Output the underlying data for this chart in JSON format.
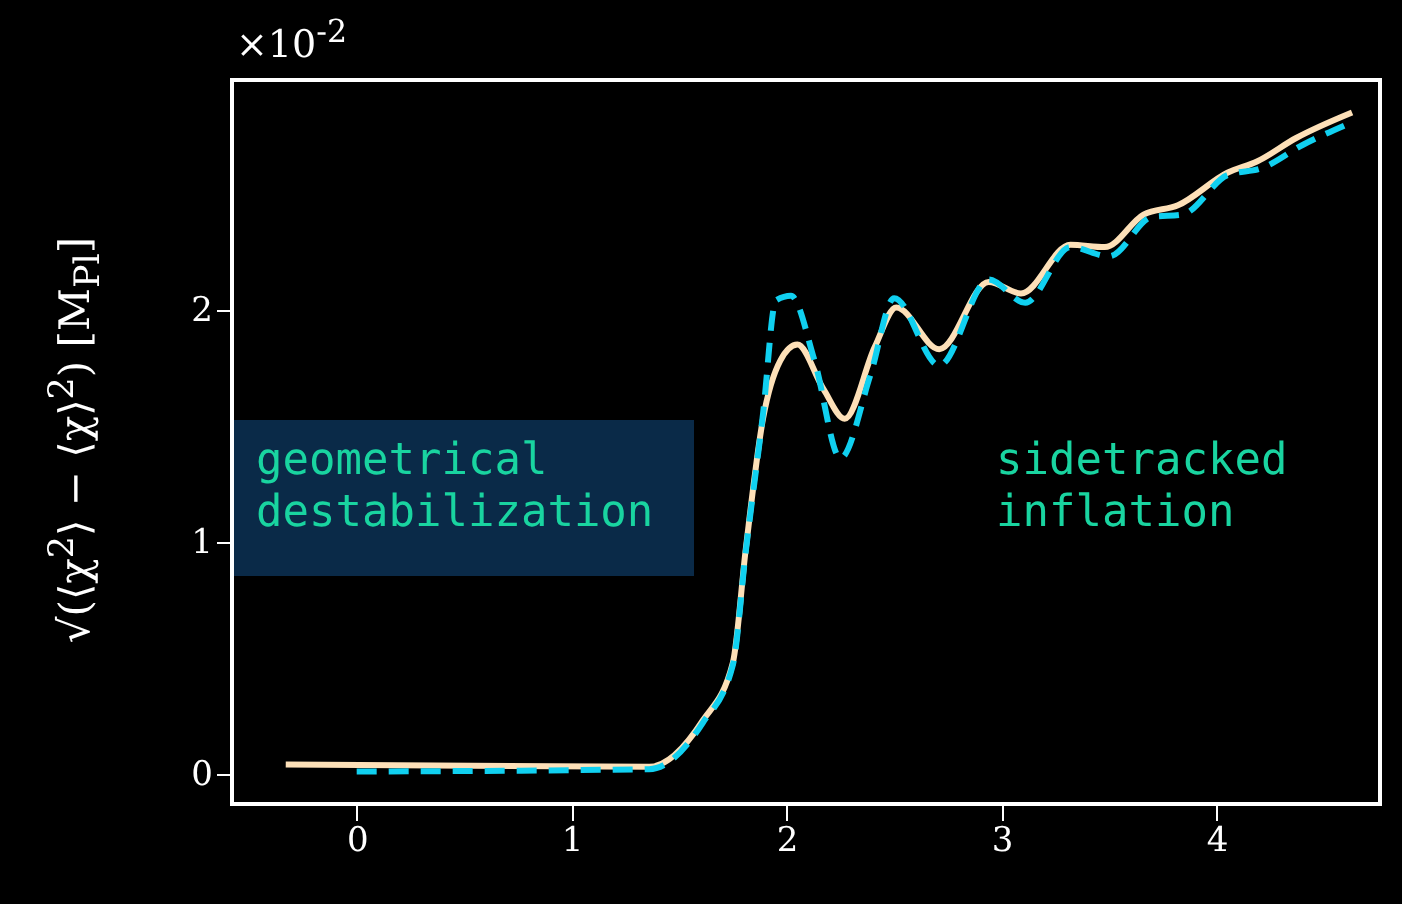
{
  "chart_data": {
    "type": "line",
    "ylabel": "√(⟨χ$^{2}$⟩ − ⟨χ⟩$^{2}$) [M$_{Pl}$]",
    "annotations": [
      "×10$^{-2}$",
      "geometrical destabilization",
      "sidetracked inflation"
    ],
    "xlim": [
      -0.58,
      4.76
    ],
    "ylim": [
      -0.13,
      2.99
    ],
    "xticks": [
      0,
      1,
      2,
      3,
      4
    ],
    "yticks": [
      0,
      1,
      2
    ],
    "grid": false,
    "series": [
      {
        "color": "#fde0b8",
        "line_style": "solid",
        "x": [
          -0.33,
          1.36,
          1.61,
          1.75,
          1.81,
          1.89,
          1.97,
          2.05,
          2.17,
          2.27,
          2.41,
          2.51,
          2.71,
          2.94,
          3.09,
          3.32,
          3.48,
          3.66,
          3.82,
          4.05,
          4.19,
          4.37,
          4.63
        ],
        "values": [
          0.04,
          0.03,
          0.23,
          0.48,
          0.97,
          1.53,
          1.78,
          1.85,
          1.66,
          1.53,
          1.84,
          2.01,
          1.83,
          2.12,
          2.07,
          2.28,
          2.27,
          2.41,
          2.45,
          2.59,
          2.64,
          2.74,
          2.85
        ]
      },
      {
        "color": "#10d0f0",
        "line_style": "dashed",
        "x": [
          0,
          1.36,
          1.61,
          1.75,
          1.81,
          1.89,
          1.95,
          2.02,
          2.13,
          2.25,
          2.39,
          2.5,
          2.71,
          2.94,
          3.11,
          3.32,
          3.5,
          3.7,
          3.84,
          4.05,
          4.21,
          4.4,
          4.61
        ],
        "values": [
          0.01,
          0.02,
          0.22,
          0.47,
          0.96,
          1.55,
          2.04,
          2.06,
          1.78,
          1.36,
          1.72,
          2.05,
          1.76,
          2.13,
          2.03,
          2.27,
          2.23,
          2.4,
          2.41,
          2.58,
          2.61,
          2.71,
          2.8
        ]
      }
    ]
  }
}
